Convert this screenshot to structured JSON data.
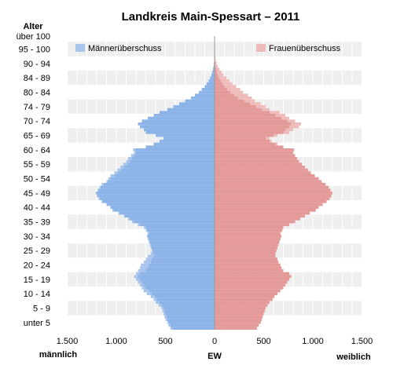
{
  "chart_data": {
    "type": "bar",
    "subtype": "population-pyramid",
    "title": "Landkreis Main-Spessart – 2011",
    "y_axis_title": "Alter",
    "x_center_label": "EW",
    "x_left_label": "männlich",
    "x_right_label": "weiblich",
    "xlim": [
      -1500,
      1500
    ],
    "x_ticks": [
      -1500,
      -1000,
      -500,
      0,
      500,
      1000,
      1500
    ],
    "x_tick_labels": [
      "1.500",
      "1.000",
      "500",
      "0",
      "500",
      "1.000",
      "1.500"
    ],
    "age_tick_labels": [
      "unter 5",
      "5 - 9",
      "10 - 14",
      "15 - 19",
      "20 - 24",
      "25 - 29",
      "30 - 34",
      "35 - 39",
      "40 - 44",
      "45 - 49",
      "50 - 54",
      "55 - 59",
      "60 - 64",
      "65 - 69",
      "70 - 74",
      "74 - 79",
      "80 - 84",
      "84 - 89",
      "90 - 94",
      "95 - 100",
      "über 100"
    ],
    "legend": [
      {
        "name": "Männerüberschuss",
        "color": "#a9c5ed"
      },
      {
        "name": "Frauenüberschuss",
        "color": "#efbcbc"
      }
    ],
    "colors": {
      "male": "#8db4e8",
      "female": "#e39a98",
      "male_surplus": "#a9c5ed",
      "female_surplus": "#efbcbc",
      "band": "#efefef"
    },
    "ages": [
      0,
      1,
      2,
      3,
      4,
      5,
      6,
      7,
      8,
      9,
      10,
      11,
      12,
      13,
      14,
      15,
      16,
      17,
      18,
      19,
      20,
      21,
      22,
      23,
      24,
      25,
      26,
      27,
      28,
      29,
      30,
      31,
      32,
      33,
      34,
      35,
      36,
      37,
      38,
      39,
      40,
      41,
      42,
      43,
      44,
      45,
      46,
      47,
      48,
      49,
      50,
      51,
      52,
      53,
      54,
      55,
      56,
      57,
      58,
      59,
      60,
      61,
      62,
      63,
      64,
      65,
      66,
      67,
      68,
      69,
      70,
      71,
      72,
      73,
      74,
      75,
      76,
      77,
      78,
      79,
      80,
      81,
      82,
      83,
      84,
      85,
      86,
      87,
      88,
      89,
      90,
      91,
      92,
      93,
      94,
      95,
      96,
      97,
      98,
      99,
      100,
      101
    ],
    "male": [
      450,
      470,
      480,
      500,
      510,
      520,
      530,
      540,
      570,
      600,
      620,
      650,
      690,
      720,
      740,
      760,
      780,
      800,
      820,
      800,
      780,
      760,
      750,
      720,
      700,
      680,
      650,
      640,
      650,
      660,
      670,
      680,
      690,
      680,
      700,
      720,
      780,
      840,
      880,
      920,
      980,
      1040,
      1060,
      1100,
      1150,
      1180,
      1200,
      1210,
      1190,
      1170,
      1150,
      1100,
      1080,
      1060,
      1020,
      990,
      960,
      930,
      900,
      880,
      850,
      820,
      830,
      700,
      620,
      560,
      520,
      600,
      700,
      720,
      760,
      780,
      740,
      680,
      620,
      560,
      480,
      420,
      360,
      300,
      240,
      200,
      160,
      130,
      100,
      80,
      60,
      45,
      32,
      24,
      16,
      10,
      7,
      4,
      3,
      2,
      1,
      1,
      0,
      0,
      0,
      0
    ],
    "female": [
      430,
      450,
      470,
      480,
      490,
      500,
      510,
      520,
      540,
      560,
      590,
      610,
      640,
      670,
      700,
      720,
      740,
      760,
      780,
      760,
      700,
      680,
      670,
      650,
      640,
      620,
      620,
      630,
      640,
      650,
      660,
      670,
      680,
      670,
      690,
      700,
      760,
      820,
      870,
      920,
      970,
      1030,
      1060,
      1100,
      1140,
      1170,
      1190,
      1200,
      1180,
      1160,
      1130,
      1090,
      1060,
      1020,
      980,
      950,
      920,
      890,
      860,
      840,
      820,
      800,
      810,
      700,
      640,
      580,
      560,
      640,
      760,
      800,
      860,
      880,
      820,
      760,
      720,
      660,
      560,
      520,
      470,
      410,
      380,
      340,
      290,
      260,
      220,
      180,
      150,
      120,
      90,
      70,
      50,
      34,
      22,
      14,
      9,
      6,
      4,
      2,
      1,
      1,
      0,
      0
    ]
  }
}
